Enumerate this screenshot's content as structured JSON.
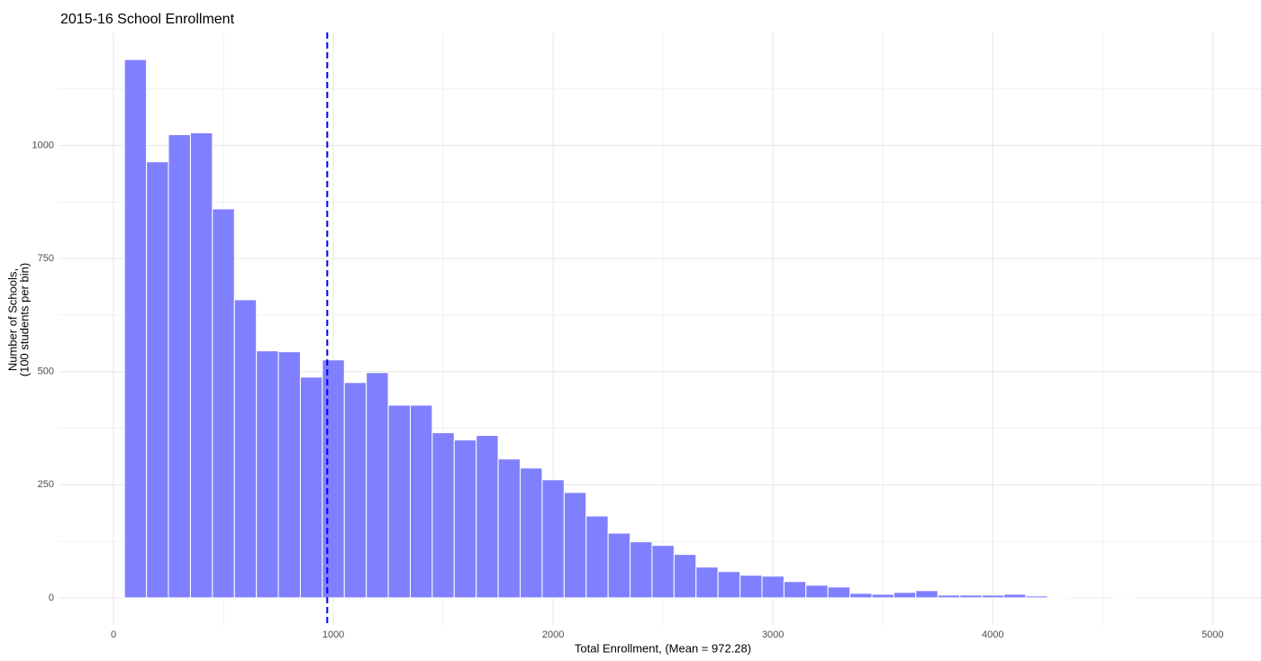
{
  "chart_data": {
    "type": "histogram",
    "title": "2015-16 School Enrollment",
    "xlabel": "Total Enrollment, (Mean = 972.28)",
    "ylabel": [
      "Number of Schools,",
      "(100 students per bin)"
    ],
    "bins": [
      50,
      150,
      250,
      350,
      450,
      550,
      650,
      750,
      850,
      950,
      1050,
      1150,
      1250,
      1350,
      1450,
      1550,
      1650,
      1750,
      1850,
      1950,
      2050,
      2150,
      2250,
      2350,
      2450,
      2550,
      2650,
      2750,
      2850,
      2950,
      3050,
      3150,
      3250,
      3350,
      3450,
      3550,
      3650,
      3750,
      3850,
      3950,
      4050,
      4150,
      4250,
      4350,
      4450,
      4550,
      4650
    ],
    "values": [
      1190,
      964,
      1024,
      1028,
      860,
      659,
      546,
      544,
      488,
      526,
      476,
      498,
      426,
      426,
      365,
      349,
      359,
      307,
      287,
      261,
      233,
      181,
      143,
      124,
      116,
      96,
      68,
      58,
      50,
      48,
      36,
      28,
      24,
      10,
      8,
      12,
      16,
      6,
      6,
      6,
      8,
      4,
      2,
      0,
      0,
      2
    ],
    "color": "#8080ff",
    "mean_line": {
      "value": 972.28,
      "color": "#0000ff"
    },
    "xlim": [
      -250,
      5220
    ],
    "xticks": [
      0,
      1000,
      2000,
      3000,
      4000,
      5000
    ],
    "xminor": [
      500,
      1500,
      2500,
      3500,
      4500
    ],
    "ylim": [
      -60,
      1250
    ],
    "yticks": [
      0,
      250,
      500,
      750,
      1000
    ],
    "yminor": [
      125,
      375,
      625,
      875,
      1125
    ],
    "grid": true
  }
}
